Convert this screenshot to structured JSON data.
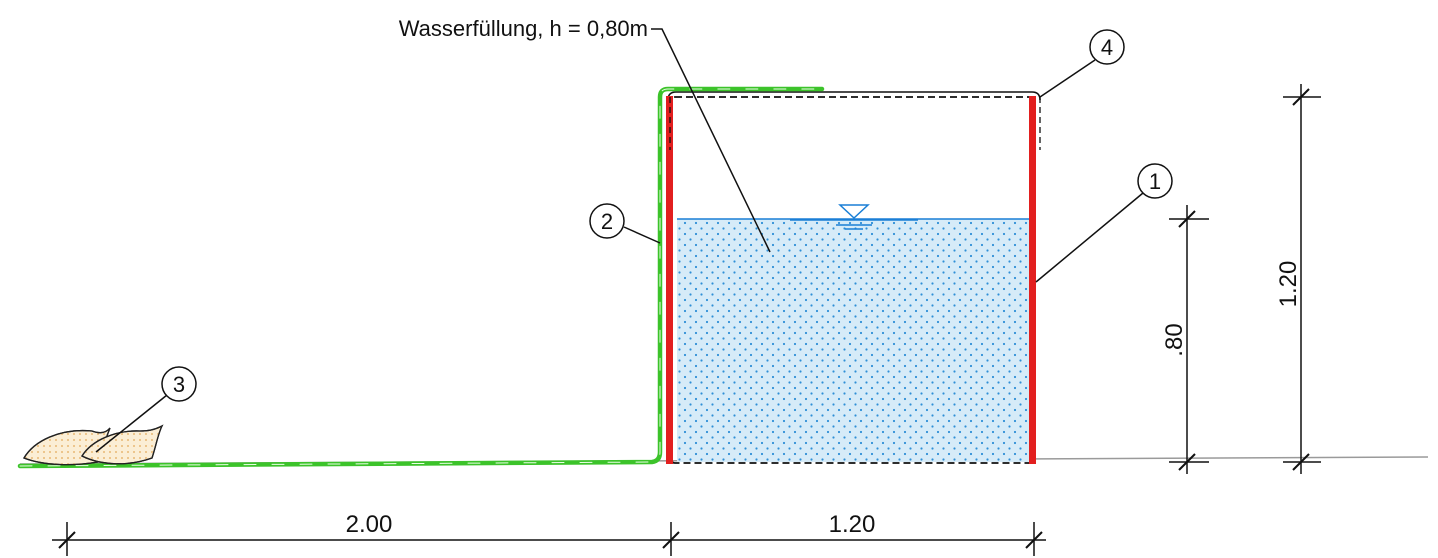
{
  "annotation": {
    "water_fill": "Wasserfüllung, h = 0,80m"
  },
  "callouts": [
    "1",
    "2",
    "3",
    "4"
  ],
  "dimensions": {
    "bottom_left": "2.00",
    "bottom_right": "1.20",
    "height_water": ".80",
    "height_total": "1.20"
  },
  "colors": {
    "wall": "#e21f1f",
    "membrane": "#3cc32a",
    "water_fill": "#d6ebf8",
    "water_dots": "#2f8fd6",
    "water_line": "#1a7fd6",
    "sandbag": "#fbeed5",
    "line": "#111111"
  },
  "icons": [
    "water-level-symbol-icon",
    "sandbag-icon"
  ]
}
